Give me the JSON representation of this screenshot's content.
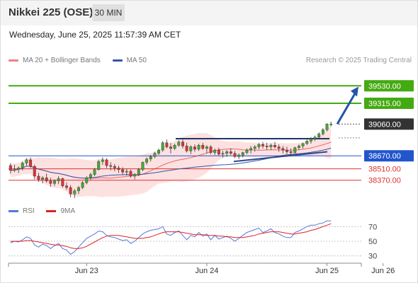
{
  "header": {
    "title": "Nikkei 225 (OSE)",
    "timeframe": "30 MIN"
  },
  "datetime": "Wednesday, June 25, 2025 11:57:39 AM CET",
  "copyright": "Research © 2025 Trading Central",
  "legend": {
    "ma20_label": "MA 20 + Bollinger Bands",
    "ma50_label": "MA 50",
    "ma20_color": "#f08080",
    "ma50_color": "#3355aa"
  },
  "rsi_legend": {
    "rsi_label": "RSI",
    "ma_label": "9MA",
    "rsi_color": "#5577dd",
    "ma_color": "#e02020"
  },
  "chart_data": {
    "type": "candlestick",
    "x_tick_labels": [
      "Jun 23",
      "Jun 24",
      "Jun 25",
      "Jun 26"
    ],
    "x_tick_index": [
      19,
      49,
      79,
      93
    ],
    "price_range": [
      38150,
      39750
    ],
    "current_price": 39060,
    "levels": [
      {
        "value": 39530,
        "label": "39530.00",
        "kind": "target"
      },
      {
        "value": 39315,
        "label": "39315.00",
        "kind": "target"
      },
      {
        "value": 39060,
        "label": "39060.00",
        "kind": "last"
      },
      {
        "value": 38670,
        "label": "38670.00",
        "kind": "pivot"
      },
      {
        "value": 38510,
        "label": "38510.00",
        "kind": "support"
      },
      {
        "value": 38370,
        "label": "38370.00",
        "kind": "support"
      }
    ],
    "colors": {
      "target": "#44aa11",
      "pivot": "#2255cc",
      "support": "#e03030",
      "last": "#333333",
      "bull": "#44aa33",
      "bear": "#dd3333",
      "band": "#fddcdc",
      "arrow": "#2255aa"
    },
    "candles": [
      [
        38550,
        38580,
        38450,
        38490
      ],
      [
        38490,
        38560,
        38470,
        38500
      ],
      [
        38500,
        38540,
        38460,
        38520
      ],
      [
        38520,
        38600,
        38490,
        38580
      ],
      [
        38580,
        38640,
        38550,
        38620
      ],
      [
        38620,
        38650,
        38520,
        38540
      ],
      [
        38540,
        38560,
        38380,
        38420
      ],
      [
        38420,
        38460,
        38350,
        38380
      ],
      [
        38380,
        38420,
        38330,
        38400
      ],
      [
        38400,
        38450,
        38340,
        38360
      ],
      [
        38360,
        38400,
        38290,
        38330
      ],
      [
        38330,
        38380,
        38300,
        38360
      ],
      [
        38360,
        38420,
        38320,
        38390
      ],
      [
        38390,
        38400,
        38280,
        38300
      ],
      [
        38300,
        38340,
        38250,
        38280
      ],
      [
        38280,
        38310,
        38160,
        38200
      ],
      [
        38200,
        38260,
        38150,
        38240
      ],
      [
        38240,
        38300,
        38200,
        38280
      ],
      [
        38280,
        38360,
        38260,
        38340
      ],
      [
        38340,
        38420,
        38320,
        38400
      ],
      [
        38400,
        38460,
        38370,
        38440
      ],
      [
        38440,
        38520,
        38420,
        38500
      ],
      [
        38500,
        38620,
        38490,
        38600
      ],
      [
        38600,
        38650,
        38560,
        38620
      ],
      [
        38620,
        38640,
        38520,
        38550
      ],
      [
        38550,
        38590,
        38490,
        38540
      ],
      [
        38540,
        38570,
        38480,
        38520
      ],
      [
        38520,
        38550,
        38460,
        38500
      ],
      [
        38500,
        38530,
        38440,
        38470
      ],
      [
        38470,
        38510,
        38430,
        38480
      ],
      [
        38480,
        38500,
        38400,
        38420
      ],
      [
        38420,
        38460,
        38380,
        38440
      ],
      [
        38440,
        38520,
        38420,
        38500
      ],
      [
        38500,
        38600,
        38480,
        38590
      ],
      [
        38590,
        38650,
        38560,
        38630
      ],
      [
        38630,
        38680,
        38600,
        38660
      ],
      [
        38660,
        38720,
        38640,
        38700
      ],
      [
        38700,
        38760,
        38680,
        38740
      ],
      [
        38740,
        38850,
        38720,
        38830
      ],
      [
        38830,
        38870,
        38760,
        38780
      ],
      [
        38780,
        38830,
        38700,
        38760
      ],
      [
        38760,
        38820,
        38740,
        38800
      ],
      [
        38800,
        38860,
        38780,
        38840
      ],
      [
        38840,
        38870,
        38760,
        38790
      ],
      [
        38790,
        38830,
        38710,
        38730
      ],
      [
        38730,
        38800,
        38690,
        38780
      ],
      [
        38780,
        38810,
        38720,
        38750
      ],
      [
        38750,
        38820,
        38730,
        38800
      ],
      [
        38800,
        38830,
        38740,
        38760
      ],
      [
        38760,
        38800,
        38700,
        38780
      ],
      [
        38780,
        38800,
        38690,
        38710
      ],
      [
        38710,
        38760,
        38680,
        38740
      ],
      [
        38740,
        38770,
        38670,
        38690
      ],
      [
        38690,
        38730,
        38650,
        38700
      ],
      [
        38700,
        38740,
        38660,
        38720
      ],
      [
        38720,
        38760,
        38680,
        38700
      ],
      [
        38700,
        38730,
        38640,
        38660
      ],
      [
        38660,
        38700,
        38630,
        38680
      ],
      [
        38680,
        38720,
        38650,
        38710
      ],
      [
        38710,
        38760,
        38690,
        38740
      ],
      [
        38740,
        38790,
        38700,
        38760
      ],
      [
        38760,
        38800,
        38720,
        38780
      ],
      [
        38780,
        38830,
        38750,
        38810
      ],
      [
        38810,
        38840,
        38760,
        38790
      ],
      [
        38790,
        38830,
        38740,
        38780
      ],
      [
        38780,
        38820,
        38740,
        38800
      ],
      [
        38800,
        38840,
        38760,
        38780
      ],
      [
        38780,
        38810,
        38720,
        38760
      ],
      [
        38760,
        38790,
        38700,
        38740
      ],
      [
        38740,
        38780,
        38690,
        38720
      ],
      [
        38720,
        38760,
        38680,
        38710
      ],
      [
        38710,
        38780,
        38700,
        38770
      ],
      [
        38770,
        38810,
        38740,
        38790
      ],
      [
        38790,
        38830,
        38760,
        38820
      ],
      [
        38820,
        38870,
        38800,
        38850
      ],
      [
        38850,
        38900,
        38820,
        38880
      ],
      [
        38880,
        38920,
        38850,
        38900
      ],
      [
        38900,
        38960,
        38880,
        38940
      ],
      [
        38940,
        39010,
        38920,
        38990
      ],
      [
        38990,
        39070,
        38970,
        39060
      ],
      [
        39060,
        39090,
        39030,
        39060
      ]
    ],
    "rsi_range": [
      20,
      80
    ],
    "rsi_ticks": [
      70,
      50,
      30
    ],
    "rsi": [
      48,
      50,
      49,
      52,
      56,
      54,
      45,
      42,
      46,
      44,
      40,
      44,
      47,
      40,
      38,
      32,
      36,
      42,
      48,
      54,
      57,
      60,
      64,
      63,
      58,
      56,
      55,
      53,
      51,
      52,
      47,
      50,
      55,
      60,
      63,
      65,
      66,
      67,
      70,
      60,
      58,
      62,
      64,
      58,
      52,
      58,
      56,
      62,
      57,
      60,
      52,
      58,
      53,
      55,
      57,
      54,
      50,
      54,
      58,
      62,
      64,
      66,
      68,
      62,
      64,
      67,
      62,
      60,
      57,
      55,
      55,
      62,
      64,
      67,
      70,
      72,
      72,
      74,
      75,
      78,
      78
    ],
    "rsi_ma": [
      50,
      50,
      50,
      50,
      51,
      51,
      50,
      49,
      48,
      47,
      46,
      45,
      45,
      44,
      43,
      41,
      40,
      40,
      41,
      43,
      46,
      49,
      52,
      55,
      57,
      58,
      58,
      58,
      57,
      56,
      55,
      54,
      54,
      54,
      55,
      56,
      58,
      60,
      62,
      63,
      63,
      63,
      63,
      62,
      61,
      60,
      59,
      59,
      59,
      58,
      58,
      58,
      57,
      57,
      56,
      56,
      55,
      55,
      55,
      56,
      57,
      58,
      60,
      61,
      62,
      63,
      63,
      63,
      62,
      61,
      60,
      60,
      61,
      62,
      63,
      65,
      66,
      68,
      70,
      72,
      74
    ]
  }
}
